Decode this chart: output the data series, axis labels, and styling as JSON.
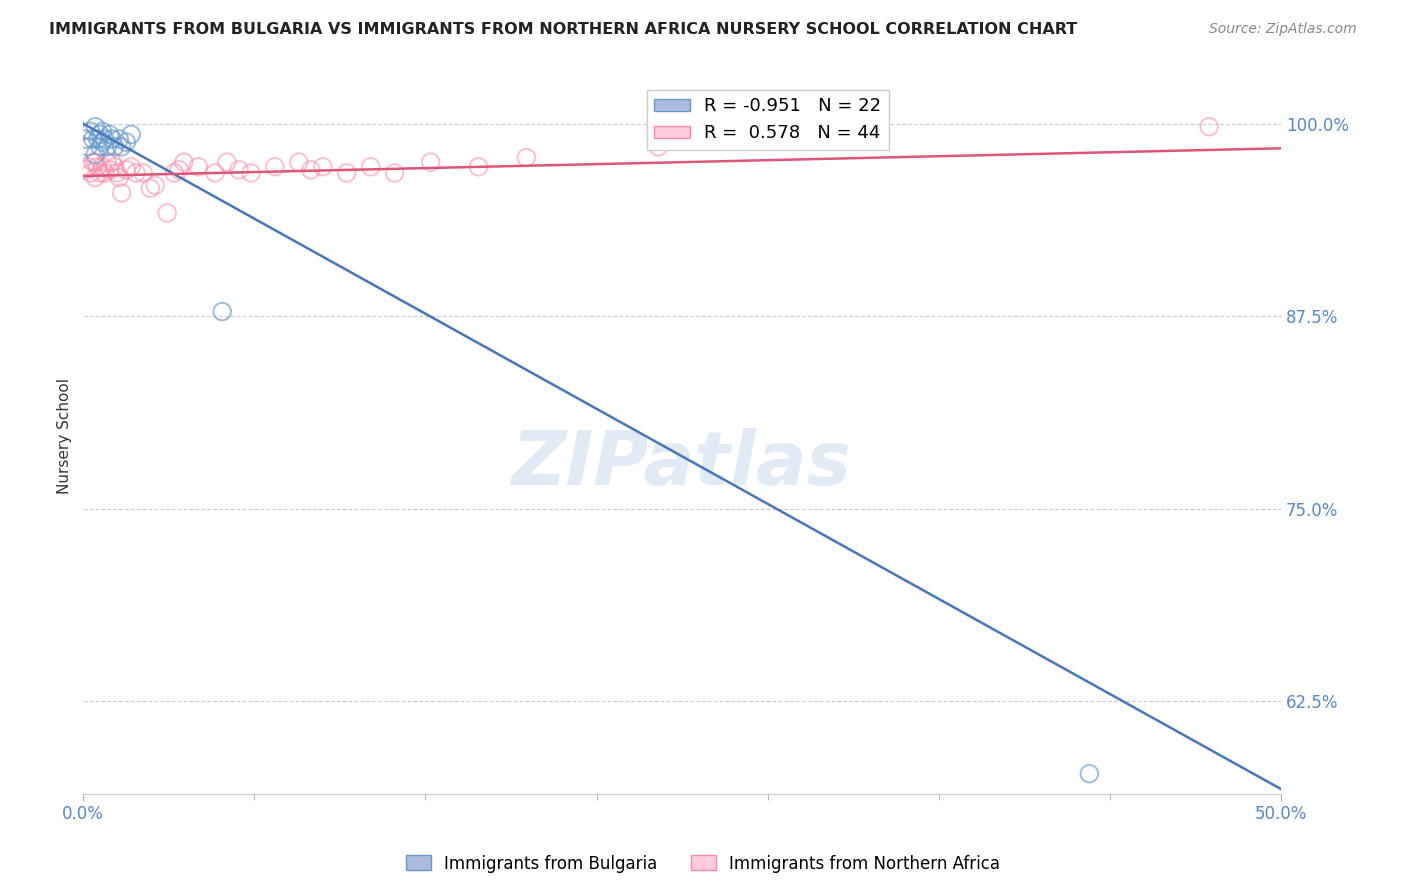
{
  "title": "IMMIGRANTS FROM BULGARIA VS IMMIGRANTS FROM NORTHERN AFRICA NURSERY SCHOOL CORRELATION CHART",
  "source": "Source: ZipAtlas.com",
  "ylabel": "Nursery School",
  "ytick_labels": [
    "100.0%",
    "87.5%",
    "75.0%",
    "62.5%"
  ],
  "ytick_values": [
    1.0,
    0.875,
    0.75,
    0.625
  ],
  "xlim": [
    0.0,
    0.5
  ],
  "ylim": [
    0.565,
    1.03
  ],
  "watermark": "ZIPatlas",
  "bg_color": "#ffffff",
  "grid_color": "#cccccc",
  "blue_scatter_x": [
    0.001,
    0.002,
    0.003,
    0.004,
    0.005,
    0.005,
    0.006,
    0.007,
    0.007,
    0.008,
    0.008,
    0.009,
    0.01,
    0.011,
    0.012,
    0.013,
    0.015,
    0.016,
    0.018,
    0.02,
    0.058,
    0.42
  ],
  "blue_scatter_y": [
    0.99,
    0.985,
    0.995,
    0.99,
    0.998,
    0.98,
    0.99,
    0.985,
    0.993,
    0.988,
    0.995,
    0.99,
    0.985,
    0.993,
    0.99,
    0.985,
    0.99,
    0.985,
    0.988,
    0.993,
    0.878,
    0.578
  ],
  "pink_scatter_x": [
    0.001,
    0.002,
    0.003,
    0.004,
    0.005,
    0.005,
    0.006,
    0.007,
    0.008,
    0.009,
    0.01,
    0.011,
    0.012,
    0.013,
    0.014,
    0.015,
    0.016,
    0.018,
    0.02,
    0.022,
    0.025,
    0.028,
    0.03,
    0.035,
    0.038,
    0.04,
    0.042,
    0.048,
    0.055,
    0.06,
    0.065,
    0.07,
    0.08,
    0.09,
    0.095,
    0.1,
    0.11,
    0.12,
    0.13,
    0.145,
    0.165,
    0.185,
    0.24,
    0.47
  ],
  "pink_scatter_y": [
    0.97,
    0.972,
    0.968,
    0.975,
    0.965,
    0.975,
    0.972,
    0.968,
    0.972,
    0.968,
    0.975,
    0.97,
    0.975,
    0.972,
    0.968,
    0.965,
    0.955,
    0.97,
    0.972,
    0.968,
    0.968,
    0.958,
    0.96,
    0.942,
    0.968,
    0.97,
    0.975,
    0.972,
    0.968,
    0.975,
    0.97,
    0.968,
    0.972,
    0.975,
    0.97,
    0.972,
    0.968,
    0.972,
    0.968,
    0.975,
    0.972,
    0.978,
    0.985,
    0.998
  ],
  "blue_line_x": [
    0.0,
    0.5
  ],
  "blue_line_y": [
    1.0,
    0.568
  ],
  "pink_line_x": [
    0.0,
    0.5
  ],
  "pink_line_y": [
    0.966,
    0.984
  ],
  "scatter_size": 160,
  "scatter_lw": 1.4,
  "blue_color": "#6699CC",
  "pink_color": "#FF88AA",
  "blue_line_color": "#4477BB",
  "pink_line_color": "#DD5577"
}
